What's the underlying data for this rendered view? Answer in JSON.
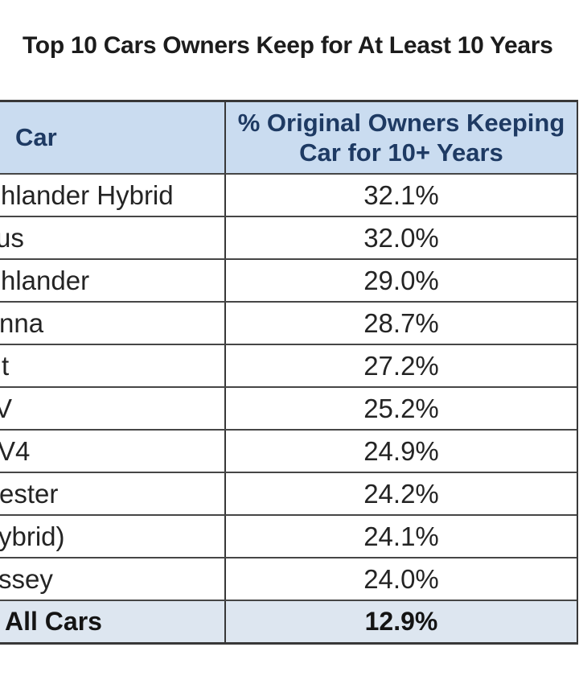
{
  "chart_data": {
    "type": "table",
    "title": "Top 10 Cars Owners Keep for At Least 10 Years",
    "columns": [
      "Car",
      "% Original Owners Keeping Car for 10+ Years"
    ],
    "column_header_lines": [
      "% Original Owners Keeping",
      "Car for 10+ Years"
    ],
    "rows": [
      {
        "car": "hlander Hybrid",
        "percent": 32.1,
        "percent_label": "32.1%"
      },
      {
        "car": "us",
        "percent": 32.0,
        "percent_label": "32.0%"
      },
      {
        "car": "hlander",
        "percent": 29.0,
        "percent_label": "29.0%"
      },
      {
        "car": "nna",
        "percent": 28.7,
        "percent_label": "28.7%"
      },
      {
        "car": "t",
        "percent": 27.2,
        "percent_label": "27.2%"
      },
      {
        "car": "V",
        "percent": 25.2,
        "percent_label": "25.2%"
      },
      {
        "car": "V4",
        "percent": 24.9,
        "percent_label": "24.9%"
      },
      {
        "car": "ester",
        "percent": 24.2,
        "percent_label": "24.2%"
      },
      {
        "car": "ybrid)",
        "percent": 24.1,
        "percent_label": "24.1%"
      },
      {
        "car": "ssey",
        "percent": 24.0,
        "percent_label": "24.0%"
      }
    ],
    "footer_row": {
      "car": "All Cars",
      "percent": 12.9,
      "percent_label": "12.9%"
    },
    "layout_hints": {
      "left_edge_cropped": true,
      "grid": "on"
    }
  },
  "colors": {
    "header_bg": "#cadcf0",
    "footer_bg": "#dde6f0",
    "border": "#383838",
    "row_line": "#464646",
    "header_text": "#1e3a63",
    "body_text": "#242424",
    "title_text": "#1c1c1c",
    "page_bg": "#ffffff"
  }
}
